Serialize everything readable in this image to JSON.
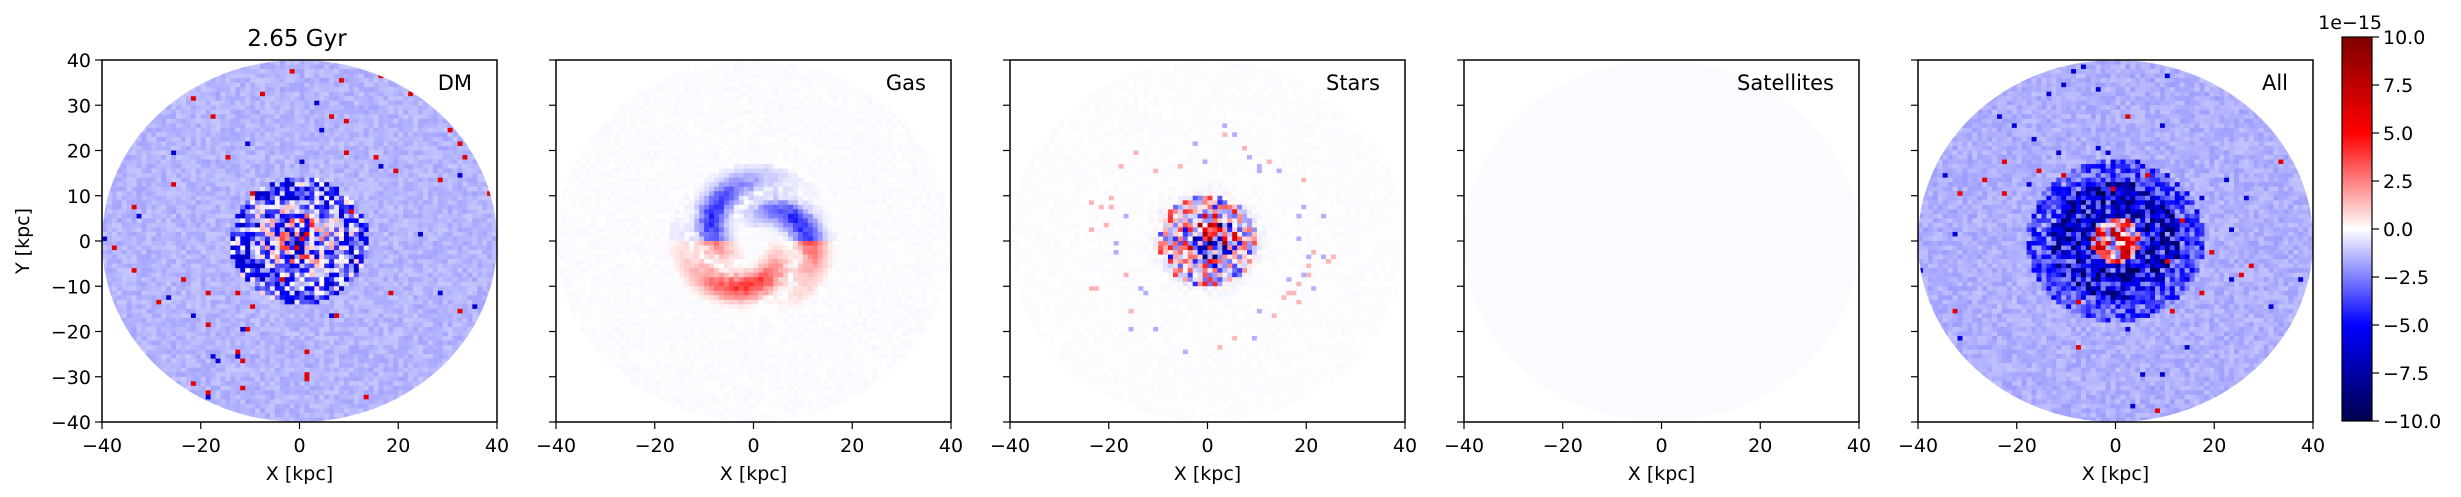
{
  "figure": {
    "time_title": "2.65 Gyr"
  },
  "chart_data": [
    {
      "type": "heatmap",
      "panel": "DM",
      "label": "DM",
      "xlabel": "X [kpc]",
      "ylabel": "Y [kpc]",
      "xlim": [
        -40,
        40
      ],
      "ylim": [
        -40,
        40
      ],
      "xticks": [
        "−40",
        "−20",
        "0",
        "20",
        "40"
      ],
      "yticks": [
        "40",
        "30",
        "20",
        "10",
        "0",
        "−10",
        "−20",
        "−30",
        "−40"
      ],
      "field_radius_kpc": 40,
      "pattern": "diffuse light-blue disk with dense red/blue noisy core and scattered red/blue pixels",
      "background_level": -1.2e-15,
      "core_amplitude": 1e-14,
      "noise_amplitude": 3e-15
    },
    {
      "type": "heatmap",
      "panel": "Gas",
      "label": "Gas",
      "xlabel": "X [kpc]",
      "ylabel": "",
      "xlim": [
        -40,
        40
      ],
      "ylim": [
        -40,
        40
      ],
      "xticks": [
        "−40",
        "−20",
        "0",
        "20",
        "40"
      ],
      "yticks": [],
      "field_radius_kpc": 40,
      "pattern": "blue arcs in upper half, red arcs in lower half within ~15 kpc",
      "background_level": -1.5e-16,
      "core_amplitude": 4e-15,
      "noise_amplitude": 5e-16
    },
    {
      "type": "heatmap",
      "panel": "Stars",
      "label": "Stars",
      "xlabel": "X [kpc]",
      "ylabel": "",
      "xlim": [
        -40,
        40
      ],
      "ylim": [
        -40,
        40
      ],
      "xticks": [
        "−40",
        "−20",
        "0",
        "20",
        "40"
      ],
      "yticks": [],
      "field_radius_kpc": 40,
      "pattern": "compact red/blue noisy core within ~15 kpc",
      "background_level": -1e-16,
      "core_amplitude": 1e-14,
      "noise_amplitude": 1e-15
    },
    {
      "type": "heatmap",
      "panel": "Satellites",
      "label": "Satellites",
      "xlabel": "X [kpc]",
      "ylabel": "",
      "xlim": [
        -40,
        40
      ],
      "ylim": [
        -40,
        40
      ],
      "xticks": [
        "−40",
        "−20",
        "0",
        "20",
        "40"
      ],
      "yticks": [],
      "field_radius_kpc": 40,
      "pattern": "nearly uniform, very faint blue",
      "background_level": -8e-17,
      "core_amplitude": 0,
      "noise_amplitude": 0
    },
    {
      "type": "heatmap",
      "panel": "All",
      "label": "All",
      "xlabel": "X [kpc]",
      "ylabel": "",
      "xlim": [
        -40,
        40
      ],
      "ylim": [
        -40,
        40
      ],
      "xticks": [
        "−40",
        "−20",
        "0",
        "20",
        "40"
      ],
      "yticks": [],
      "field_radius_kpc": 40,
      "pattern": "sum of components: light-blue disk, strong blue ring around red core",
      "background_level": -1.3e-15,
      "core_amplitude": 1e-14,
      "noise_amplitude": 3e-15
    }
  ],
  "colorbar": {
    "colormap": "seismic",
    "vmin": -1e-14,
    "vmax": 1e-14,
    "offset_label": "1e−15",
    "ticks": [
      "10.0",
      "7.5",
      "5.0",
      "2.5",
      "0.0",
      "−2.5",
      "−5.0",
      "−7.5",
      "−10.0"
    ],
    "colors": {
      "min": "#00004c",
      "low": "#0000ff",
      "mid": "#ffffff",
      "high": "#ff0000",
      "max": "#7f0000"
    }
  }
}
